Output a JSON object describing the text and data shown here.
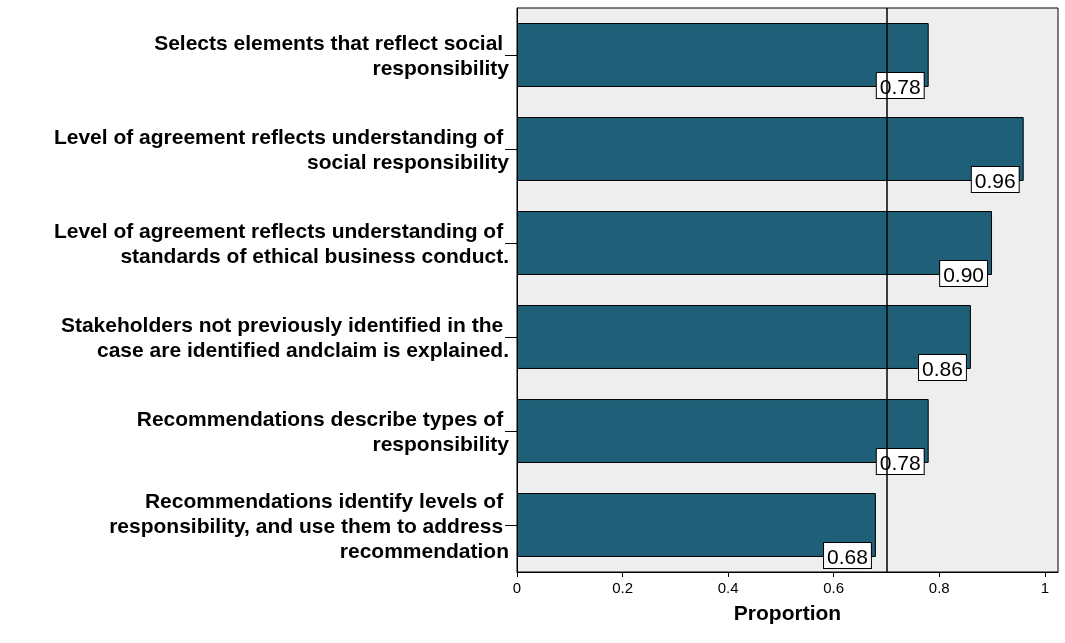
{
  "chart_data": {
    "type": "bar",
    "orientation": "horizontal",
    "xlabel": "Proportion",
    "categories": [
      "Selects elements that reflect social responsibility",
      "Level of agreement reflects understanding of social responsibility",
      "Level of agreement reflects understanding of standards of ethical business conduct.",
      "Stakeholders not previously identified in the case are identified andclaim is explained.",
      "Recommendations describe types of responsibility",
      "Recommendations identify levels of responsibility, and use them to address recommendation"
    ],
    "values": [
      0.78,
      0.96,
      0.9,
      0.86,
      0.78,
      0.68
    ],
    "value_labels": [
      "0.78",
      "0.96",
      "0.90",
      "0.86",
      "0.78",
      "0.68"
    ],
    "color": "#1f5f78",
    "xlim": [
      0,
      1.025
    ],
    "xticks": [
      0,
      0.2,
      0.4,
      0.6,
      0.8,
      1
    ],
    "ref_lines": [
      {
        "axis": "x",
        "value": 0.7,
        "color": "#000000"
      }
    ],
    "grid": false
  }
}
